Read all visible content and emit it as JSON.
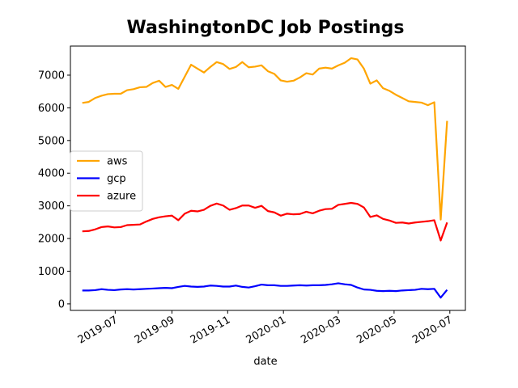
{
  "chart_data": {
    "type": "line",
    "title": "WashingtonDC Job Postings",
    "xlabel": "date",
    "xlabel_color": "#8b0000",
    "legend": "center left",
    "xlim": [
      "2019-05-13",
      "2020-07-18"
    ],
    "ylim": [
      -200,
      7890
    ],
    "yticks": [
      0,
      1000,
      2000,
      3000,
      4000,
      5000,
      6000,
      7000
    ],
    "xticks": [
      {
        "value": "2019-07-01",
        "label": "2019-07"
      },
      {
        "value": "2019-09-01",
        "label": "2019-09"
      },
      {
        "value": "2019-11-01",
        "label": "2019-11"
      },
      {
        "value": "2020-01-01",
        "label": "2020-01"
      },
      {
        "value": "2020-03-01",
        "label": "2020-03"
      },
      {
        "value": "2020-05-01",
        "label": "2020-05"
      },
      {
        "value": "2020-07-01",
        "label": "2020-07"
      }
    ],
    "x": [
      "2019-05-26",
      "2019-06-02",
      "2019-06-09",
      "2019-06-16",
      "2019-06-23",
      "2019-06-30",
      "2019-07-07",
      "2019-07-14",
      "2019-07-21",
      "2019-07-28",
      "2019-08-04",
      "2019-08-11",
      "2019-08-18",
      "2019-08-25",
      "2019-09-01",
      "2019-09-08",
      "2019-09-15",
      "2019-09-22",
      "2019-09-29",
      "2019-10-06",
      "2019-10-13",
      "2019-10-20",
      "2019-10-27",
      "2019-11-03",
      "2019-11-10",
      "2019-11-17",
      "2019-11-24",
      "2019-12-01",
      "2019-12-08",
      "2019-12-15",
      "2019-12-22",
      "2019-12-29",
      "2020-01-05",
      "2020-01-12",
      "2020-01-19",
      "2020-01-26",
      "2020-02-02",
      "2020-02-09",
      "2020-02-16",
      "2020-02-23",
      "2020-03-01",
      "2020-03-08",
      "2020-03-15",
      "2020-03-22",
      "2020-03-29",
      "2020-04-05",
      "2020-04-12",
      "2020-04-19",
      "2020-04-26",
      "2020-05-03",
      "2020-05-10",
      "2020-05-17",
      "2020-05-24",
      "2020-05-31",
      "2020-06-07",
      "2020-06-14",
      "2020-06-21",
      "2020-06-28"
    ],
    "series": [
      {
        "name": "aws",
        "color": "#ffa500",
        "values": [
          6150,
          6180,
          6300,
          6370,
          6420,
          6430,
          6430,
          6540,
          6570,
          6630,
          6640,
          6760,
          6830,
          6640,
          6700,
          6580,
          6950,
          7320,
          7200,
          7080,
          7250,
          7400,
          7340,
          7190,
          7250,
          7400,
          7240,
          7260,
          7300,
          7120,
          7040,
          6840,
          6800,
          6830,
          6930,
          7060,
          7020,
          7200,
          7230,
          7200,
          7300,
          7380,
          7520,
          7480,
          7200,
          6740,
          6840,
          6600,
          6520,
          6400,
          6300,
          6200,
          6180,
          6160,
          6080,
          6170,
          2580,
          5600
        ]
      },
      {
        "name": "gcp",
        "color": "#0000ff",
        "values": [
          410,
          410,
          420,
          450,
          430,
          420,
          440,
          450,
          440,
          450,
          460,
          470,
          480,
          490,
          480,
          520,
          550,
          530,
          520,
          530,
          560,
          550,
          530,
          530,
          560,
          520,
          500,
          540,
          590,
          570,
          570,
          550,
          550,
          560,
          570,
          560,
          570,
          570,
          580,
          600,
          630,
          600,
          580,
          500,
          440,
          430,
          400,
          390,
          400,
          390,
          410,
          420,
          430,
          460,
          450,
          460,
          190,
          430
        ]
      },
      {
        "name": "azure",
        "color": "#ff0000",
        "values": [
          2220,
          2230,
          2280,
          2350,
          2370,
          2340,
          2350,
          2410,
          2420,
          2430,
          2520,
          2600,
          2650,
          2680,
          2700,
          2560,
          2760,
          2850,
          2830,
          2880,
          3000,
          3070,
          3010,
          2880,
          2930,
          3010,
          3010,
          2940,
          3000,
          2840,
          2800,
          2700,
          2760,
          2740,
          2750,
          2820,
          2770,
          2850,
          2900,
          2910,
          3030,
          3060,
          3090,
          3060,
          2950,
          2660,
          2710,
          2600,
          2550,
          2480,
          2490,
          2460,
          2490,
          2510,
          2530,
          2560,
          1940,
          2490
        ]
      }
    ]
  }
}
